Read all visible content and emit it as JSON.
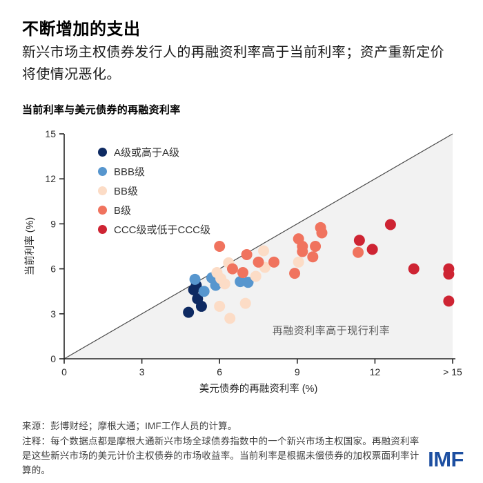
{
  "page": {
    "title": "不断增加的支出",
    "subtitle": "新兴市场主权债券发行人的再融资利率高于当前利率；资产重新定价将使情况恶化。",
    "source": "来源：彭博财经；摩根大通；IMF工作人员的计算。",
    "note": "注释：每个数据点都是摩根大通新兴市场全球债券指数中的一个新兴市场主权国家。再融资利率是这些新兴市场的美元计价主权债券的市场收益率。当前利率是根据未偿债券的加权票面利率计算的。",
    "logo": "IMF",
    "logo_color": "#1d4fa1"
  },
  "chart_data": {
    "type": "scatter",
    "title": "当前利率与美元债券的再融资利率",
    "xlabel": "美元债券的再融资利率 (%)",
    "ylabel": "当前利率 (%)",
    "xlim": [
      0,
      15
    ],
    "ylim": [
      0,
      15
    ],
    "x_tick_values": [
      0,
      3,
      6,
      9,
      12,
      15
    ],
    "x_tick_labels": [
      "0",
      "3",
      "6",
      "9",
      "12",
      "> 15"
    ],
    "y_tick_values": [
      0,
      3,
      6,
      9,
      12,
      15
    ],
    "y_tick_labels": [
      "0",
      "3",
      "6",
      "9",
      "12",
      "15"
    ],
    "grid": false,
    "legend_position": "upper-left",
    "identity_line": true,
    "shaded_region": "below_identity_line",
    "shade_color": "#f2f2f2",
    "line_color": "#4a4a4a",
    "axis_color": "#262626",
    "annotation": "再融资利率高于现行利率",
    "point_radius": 8,
    "series": [
      {
        "name": "A级或高于A级",
        "color": "#0e2a62",
        "points": [
          [
            5.1,
            4.9
          ],
          [
            5.0,
            4.6
          ],
          [
            5.15,
            4.0
          ],
          [
            5.3,
            3.5
          ],
          [
            4.8,
            3.1
          ]
        ]
      },
      {
        "name": "BBB级",
        "color": "#5796ce",
        "points": [
          [
            5.05,
            5.3
          ],
          [
            5.4,
            4.5
          ],
          [
            5.7,
            5.4
          ],
          [
            5.85,
            4.9
          ],
          [
            6.8,
            5.15
          ],
          [
            7.1,
            5.1
          ]
        ]
      },
      {
        "name": "BB级",
        "color": "#fcdcc6",
        "points": [
          [
            5.9,
            5.75
          ],
          [
            6.05,
            5.35
          ],
          [
            6.2,
            5.0
          ],
          [
            6.35,
            6.4
          ],
          [
            6.0,
            3.5
          ],
          [
            6.4,
            2.7
          ],
          [
            7.0,
            3.7
          ],
          [
            7.4,
            5.5
          ],
          [
            7.7,
            7.2
          ],
          [
            7.75,
            6.1
          ],
          [
            9.05,
            6.45
          ]
        ]
      },
      {
        "name": "B级",
        "color": "#f0735e",
        "points": [
          [
            6.0,
            7.5
          ],
          [
            6.5,
            6.0
          ],
          [
            6.9,
            5.75
          ],
          [
            7.05,
            6.95
          ],
          [
            7.5,
            6.45
          ],
          [
            8.1,
            6.45
          ],
          [
            8.9,
            5.7
          ],
          [
            9.05,
            8.0
          ],
          [
            9.2,
            7.5
          ],
          [
            9.2,
            7.15
          ],
          [
            9.7,
            7.5
          ],
          [
            9.6,
            6.8
          ],
          [
            9.9,
            8.75
          ],
          [
            9.95,
            8.4
          ],
          [
            11.35,
            7.1
          ]
        ]
      },
      {
        "name": "CCC级或低于CCC级",
        "color": "#ce2433",
        "points": [
          [
            11.4,
            7.9
          ],
          [
            11.9,
            7.3
          ],
          [
            12.6,
            8.95
          ],
          [
            13.5,
            6.0
          ],
          [
            14.85,
            6.0
          ],
          [
            14.85,
            5.65
          ],
          [
            14.85,
            3.85
          ]
        ]
      }
    ]
  }
}
